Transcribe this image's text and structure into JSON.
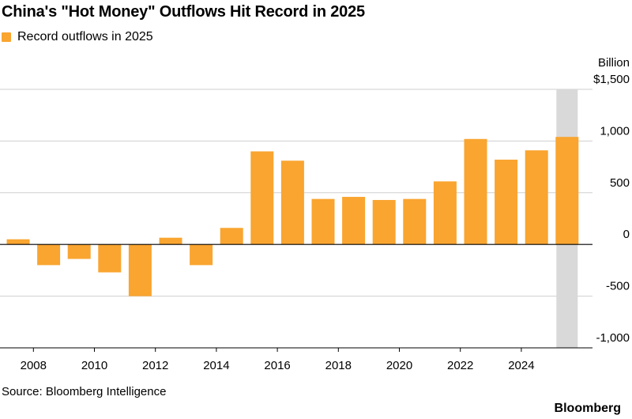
{
  "title": "China's \"Hot Money\" Outflows Hit Record in 2025",
  "legend": {
    "label": "Record outflows in 2025",
    "color": "#F9A530"
  },
  "source": "Source: Bloomberg Intelligence",
  "brand": "Bloomberg",
  "chart_data": {
    "type": "bar",
    "title": "China's \"Hot Money\" Outflows Hit Record in 2025",
    "ylabel": "Billion",
    "ylim": [
      -1000,
      1500
    ],
    "y_ticks": [
      -1000,
      -500,
      0,
      500,
      1000,
      1500
    ],
    "y_tick_labels": [
      "-1,000",
      "-500",
      "0",
      "500",
      "1,000",
      "$1,500"
    ],
    "x_tick_labels": [
      "2008",
      "2010",
      "2012",
      "2014",
      "2016",
      "2018",
      "2020",
      "2022",
      "2024"
    ],
    "categories": [
      "2007",
      "2008",
      "2009",
      "2010",
      "2011",
      "2012",
      "2013",
      "2014",
      "2015",
      "2016",
      "2017",
      "2018",
      "2019",
      "2020",
      "2021",
      "2022",
      "2023",
      "2024",
      "2025"
    ],
    "series": [
      {
        "name": "Record outflows in 2025",
        "color": "#F9A530",
        "values": [
          50,
          -200,
          -140,
          -270,
          -500,
          65,
          -200,
          160,
          900,
          810,
          440,
          460,
          430,
          440,
          610,
          1020,
          820,
          910,
          1040
        ]
      }
    ],
    "highlight": {
      "category": "2025",
      "color": "#D9D9D9"
    },
    "grid": true,
    "legend_position": "top-left"
  }
}
